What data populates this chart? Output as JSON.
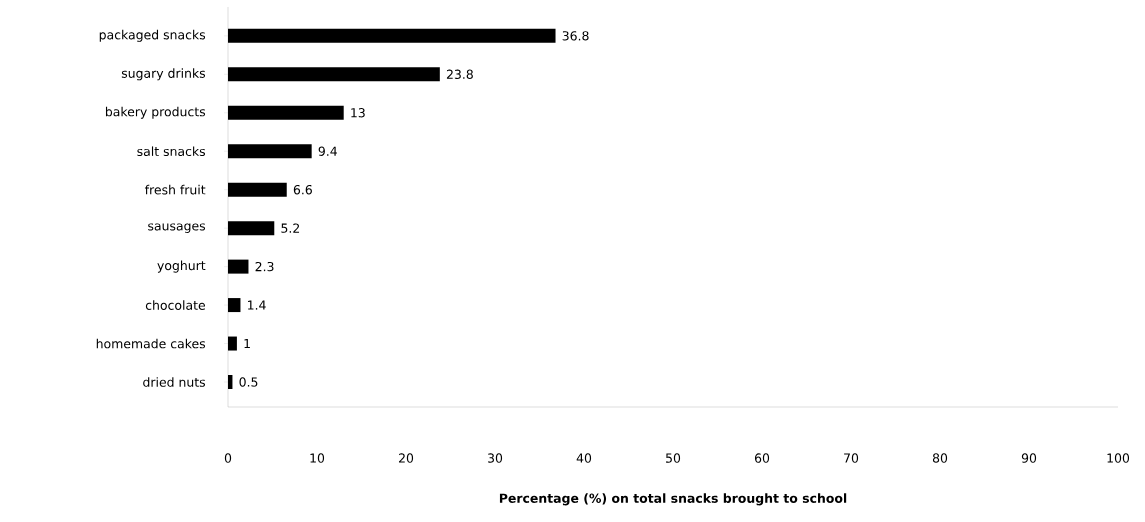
{
  "chart_data": {
    "type": "bar",
    "orientation": "horizontal",
    "categories": [
      "packaged snacks",
      "sugary drinks",
      "bakery products",
      "salt snacks",
      "fresh fruit",
      "sausages",
      "yoghurt",
      "chocolate",
      "homemade cakes",
      "dried nuts"
    ],
    "values": [
      36.8,
      23.8,
      13,
      9.4,
      6.6,
      5.2,
      2.3,
      1.4,
      1,
      0.5
    ],
    "color": "#000000",
    "xlim": [
      0,
      100
    ],
    "xticks": [
      0,
      10,
      20,
      30,
      40,
      50,
      60,
      70,
      80,
      90,
      100
    ],
    "xlabel": "Percentage (%) on total snacks  brought to school",
    "data_labels": true
  }
}
